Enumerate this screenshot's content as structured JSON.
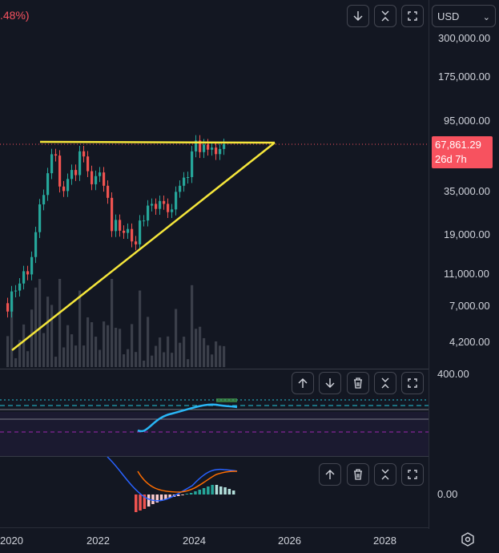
{
  "header": {
    "change_text": ".48%)"
  },
  "toolbar": {
    "buttons": [
      {
        "icon": "arrow-down-icon"
      },
      {
        "icon": "collapse-icon"
      },
      {
        "icon": "maximize-icon"
      }
    ]
  },
  "currency": {
    "selected": "USD"
  },
  "price_axis": {
    "labels": [
      "300,000.00",
      "175,000.00",
      "95,000.00",
      "35,000.00",
      "19,000.00",
      "11,000.00",
      "7,000.00",
      "4,200.00"
    ],
    "current_price": "67,861.29",
    "countdown": "26d 7h"
  },
  "oscillator_pane": {
    "top_label": "400.00",
    "buttons": [
      {
        "icon": "arrow-up-icon"
      },
      {
        "icon": "arrow-down-icon"
      },
      {
        "icon": "trash-icon"
      },
      {
        "icon": "collapse-icon"
      },
      {
        "icon": "maximize-icon"
      }
    ]
  },
  "macd_pane": {
    "zero_label": "0.00",
    "buttons": [
      {
        "icon": "arrow-up-icon"
      },
      {
        "icon": "trash-icon"
      },
      {
        "icon": "collapse-icon"
      },
      {
        "icon": "maximize-icon"
      }
    ]
  },
  "time_axis": {
    "labels": [
      "2020",
      "2022",
      "2024",
      "2026",
      "2028"
    ]
  },
  "colors": {
    "background": "#131722",
    "up": "#26a69a",
    "down": "#ef5350",
    "trendline": "#f5e63b",
    "price_tag": "#f7525f",
    "rsi_line": "#29b6f6",
    "macd_line": "#2962ff",
    "signal_line": "#ff6d00"
  },
  "chart_data": {
    "type": "candlestick",
    "scale": "log",
    "x_axis_labels": [
      "2020",
      "2022",
      "2024",
      "2026",
      "2028"
    ],
    "y_axis_labels": [
      300000,
      175000,
      95000,
      35000,
      19000,
      11000,
      7000,
      4200
    ],
    "current_price": 67861.29,
    "candles_monthly_close": [
      6400,
      8500,
      8600,
      9500,
      11300,
      10800,
      13800,
      19600,
      29000,
      33100,
      45000,
      58800,
      57700,
      37300,
      35000,
      41500,
      47100,
      43800,
      61300,
      57000,
      46300,
      38500,
      43200,
      45500,
      37700,
      31800,
      19900,
      23300,
      20000,
      19400,
      20500,
      17200,
      16500,
      23100,
      23100,
      28500,
      29200,
      27200,
      30400,
      29200,
      26000,
      27000,
      34600,
      37700,
      42300,
      42600,
      61200,
      71300,
      60600,
      67500,
      62700,
      64600,
      58900,
      63300,
      67861
    ],
    "overlays": [
      "ascending triangle: resistance ~69000, rising support from ~4000 (2020) to ~69000 (late 2025)"
    ],
    "oscillator": {
      "type": "line",
      "label": "400.00"
    },
    "macd": {
      "zero_label": "0.00"
    }
  }
}
